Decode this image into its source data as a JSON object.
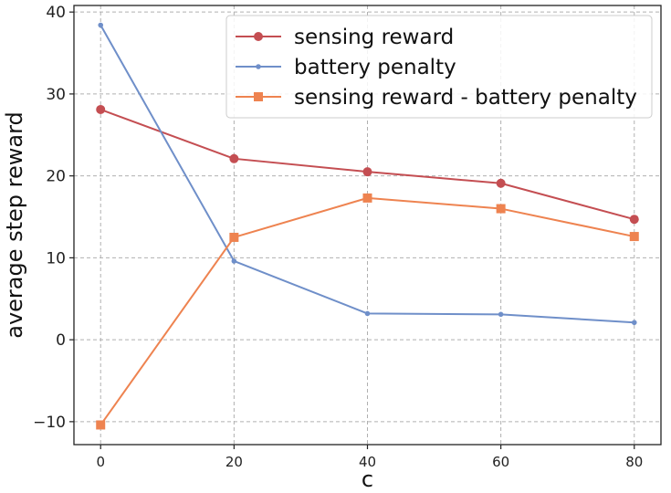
{
  "chart_data": {
    "type": "line",
    "title": "",
    "xlabel": "c",
    "ylabel": "average step reward",
    "x": [
      0,
      20,
      40,
      60,
      80
    ],
    "xlim": [
      -4,
      84
    ],
    "ylim": [
      -12.8,
      40.8
    ],
    "xticks": [
      0,
      20,
      40,
      60,
      80
    ],
    "yticks": [
      -10,
      0,
      10,
      20,
      30,
      40
    ],
    "ytick_labels": [
      "−10",
      "0",
      "10",
      "20",
      "30",
      "40"
    ],
    "grid": true,
    "legend_position": "top-right",
    "series": [
      {
        "name": "sensing reward",
        "values": [
          28.1,
          22.1,
          20.5,
          19.1,
          14.7
        ],
        "color": "#c44e52",
        "marker": "circle"
      },
      {
        "name": "battery penalty",
        "values": [
          38.4,
          9.6,
          3.2,
          3.1,
          2.1
        ],
        "color": "#6f8fc9",
        "marker": "small-circle"
      },
      {
        "name": "sensing reward - battery penalty",
        "values": [
          -10.4,
          12.5,
          17.3,
          16.0,
          12.6
        ],
        "color": "#ee8350",
        "marker": "square"
      }
    ]
  }
}
